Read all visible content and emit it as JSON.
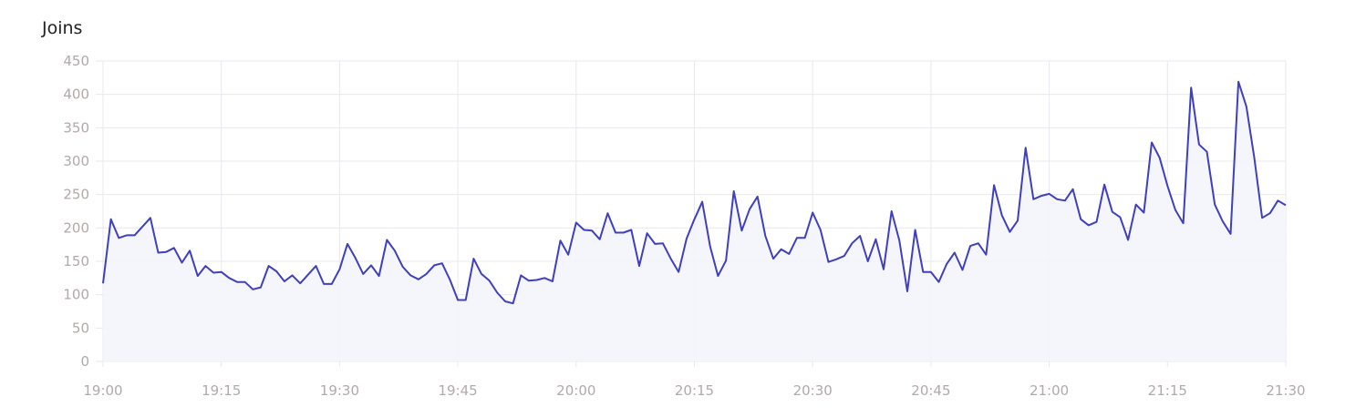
{
  "chart_data": {
    "type": "area",
    "title": "Joins",
    "xlabel": "",
    "ylabel": "",
    "x_start": "19:00",
    "x_interval_minutes": 1,
    "x_ticks": [
      "19:00",
      "19:15",
      "19:30",
      "19:45",
      "20:00",
      "20:15",
      "20:30",
      "20:45",
      "21:00",
      "21:15",
      "21:30"
    ],
    "y_ticks": [
      0,
      50,
      100,
      150,
      200,
      250,
      300,
      350,
      400,
      450
    ],
    "ylim": [
      0,
      450
    ],
    "grid": true,
    "line_color": "#3f3fbf",
    "fill_color": "#f4f5fb",
    "values": [
      117,
      213,
      185,
      189,
      189,
      202,
      215,
      163,
      164,
      170,
      148,
      166,
      128,
      143,
      133,
      134,
      125,
      119,
      119,
      108,
      111,
      143,
      135,
      120,
      129,
      117,
      130,
      143,
      116,
      116,
      138,
      176,
      155,
      131,
      144,
      128,
      182,
      166,
      142,
      129,
      123,
      131,
      144,
      147,
      122,
      92,
      92,
      154,
      131,
      121,
      103,
      90,
      87,
      129,
      121,
      122,
      125,
      120,
      181,
      160,
      208,
      197,
      196,
      183,
      222,
      193,
      193,
      197,
      143,
      192,
      176,
      177,
      154,
      134,
      184,
      213,
      239,
      172,
      128,
      151,
      255,
      196,
      228,
      247,
      188,
      154,
      168,
      161,
      185,
      185,
      223,
      197,
      149,
      153,
      158,
      177,
      188,
      150,
      183,
      138,
      225,
      181,
      105,
      197,
      134,
      134,
      119,
      146,
      163,
      137,
      173,
      177,
      160,
      264,
      219,
      194,
      211,
      320,
      243,
      248,
      251,
      243,
      241,
      258,
      213,
      204,
      209,
      265,
      224,
      216,
      182,
      235,
      223,
      328,
      305,
      263,
      227,
      207,
      410,
      325,
      314,
      235,
      210,
      191,
      419,
      382,
      306,
      215,
      222,
      241,
      234
    ]
  }
}
